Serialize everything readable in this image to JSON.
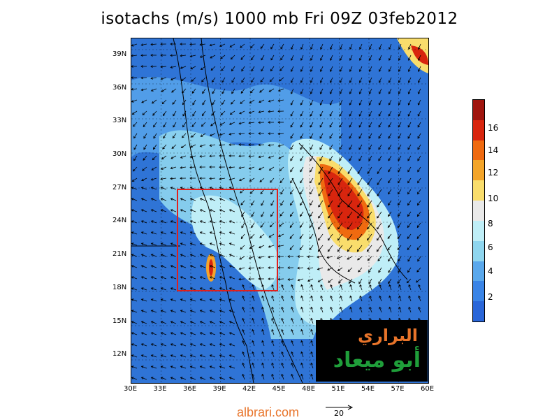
{
  "title": "isotachs (m/s) 1000 mb Fri 09Z 03feb2012",
  "map": {
    "lon_labels": [
      "30E",
      "33E",
      "36E",
      "39E",
      "42E",
      "45E",
      "48E",
      "51E",
      "54E",
      "57E",
      "60E"
    ],
    "lat_labels": [
      "12N",
      "15N",
      "18N",
      "21N",
      "24N",
      "27N",
      "30N",
      "33N",
      "36N",
      "39N"
    ],
    "region_box": {
      "lon": [
        34.5,
        45.0
      ],
      "lat": [
        18.0,
        26.8
      ],
      "color": "#e2201c"
    },
    "wind_max_area": "Arabian Gulf / eastern Saudi Arabia"
  },
  "colorbar": {
    "labels": [
      "16",
      "14",
      "12",
      "10",
      "8",
      "6",
      "4",
      "2"
    ],
    "colors": [
      "#a0150e",
      "#d8250e",
      "#ef6a10",
      "#f4a52a",
      "#f9dd6c",
      "#e9e9e9",
      "#bfeef7",
      "#8fd6ef",
      "#5aa8ec",
      "#3a84e6",
      "#2a66d8"
    ]
  },
  "watermark": {
    "line1": "البراري",
    "line2": "أبو ميعاد"
  },
  "footer": {
    "site": "albrari.com",
    "ref_vector": "20"
  }
}
